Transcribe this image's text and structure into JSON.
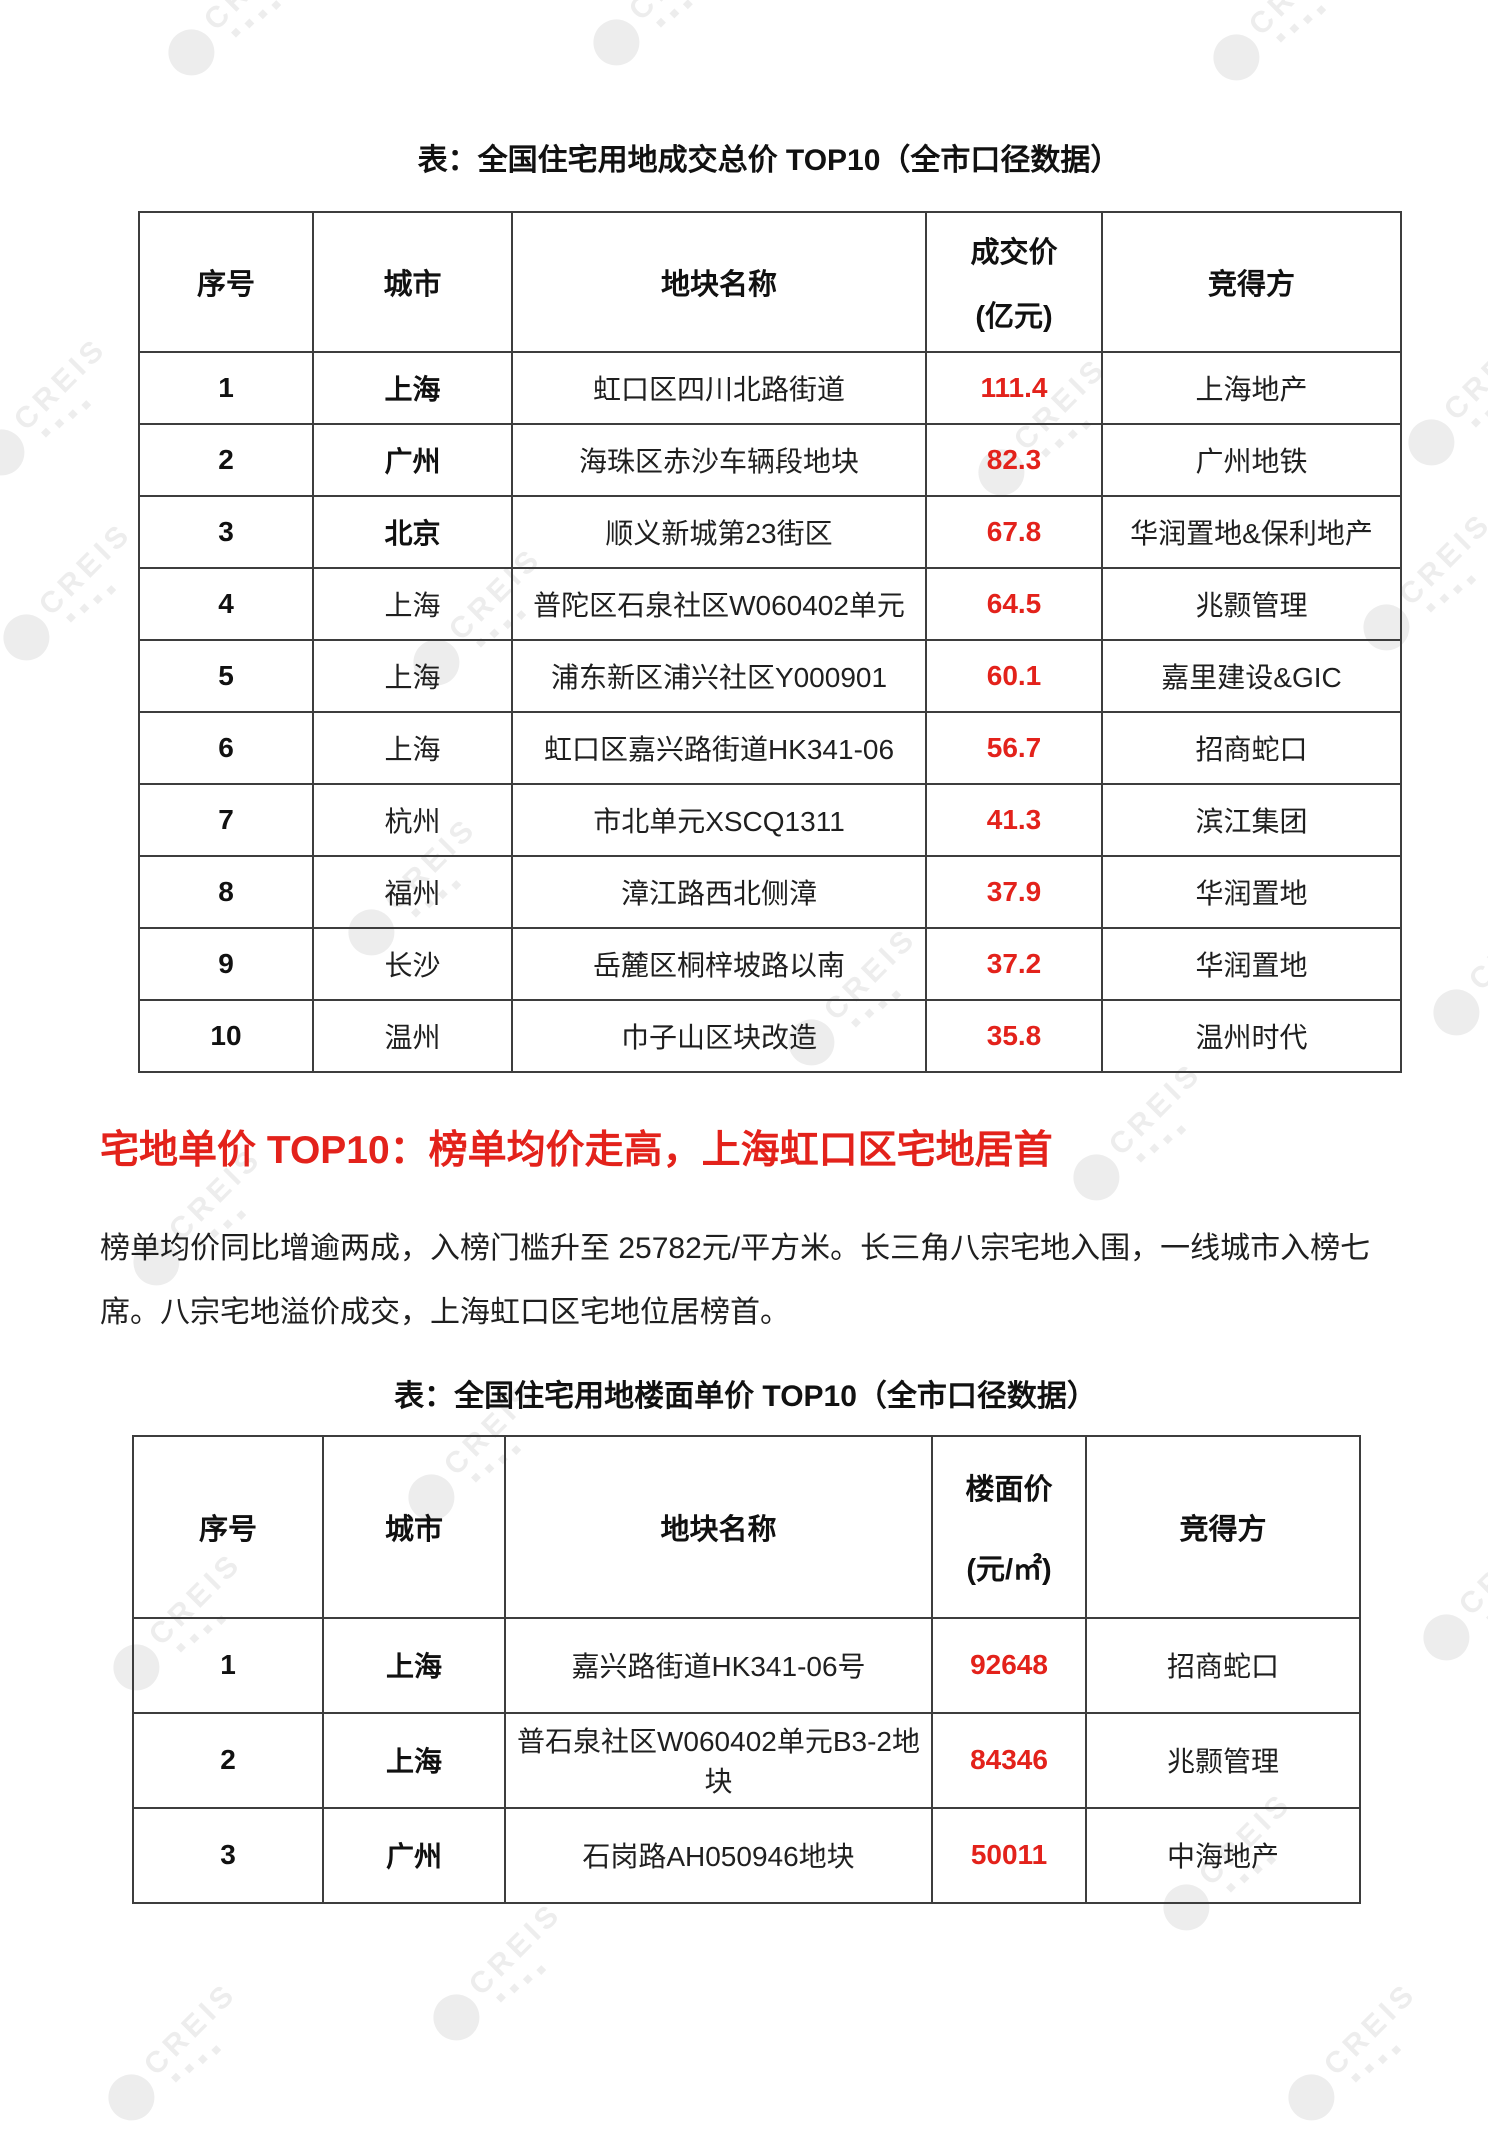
{
  "colors": {
    "accent_red": "#e3221b",
    "text": "#1f1f1f",
    "table_border": "#3d3d3d",
    "watermark_gray": "#ededed"
  },
  "watermark": {
    "text": "CREIS"
  },
  "section1": {
    "table_title": "表：全国住宅用地成交总价 TOP10（全市口径数据）",
    "table": {
      "col_rank": "序号",
      "col_city": "城市",
      "col_plot": "地块名称",
      "col_price_line1": "成交价",
      "col_price_unit": "(亿元)",
      "col_winner": "竞得方",
      "rows": [
        {
          "rank": "1",
          "city": "上海",
          "city_bold": true,
          "plot": "虹口区四川北路街道",
          "price": "111.4",
          "winner": "上海地产"
        },
        {
          "rank": "2",
          "city": "广州",
          "city_bold": true,
          "plot": "海珠区赤沙车辆段地块",
          "price": "82.3",
          "winner": "广州地铁"
        },
        {
          "rank": "3",
          "city": "北京",
          "city_bold": true,
          "plot": "顺义新城第23街区",
          "price": "67.8",
          "winner": "华润置地&保利地产"
        },
        {
          "rank": "4",
          "city": "上海",
          "city_bold": false,
          "plot": "普陀区石泉社区W060402单元",
          "price": "64.5",
          "winner": "兆颢管理"
        },
        {
          "rank": "5",
          "city": "上海",
          "city_bold": false,
          "plot": "浦东新区浦兴社区Y000901",
          "price": "60.1",
          "winner": "嘉里建设&GIC"
        },
        {
          "rank": "6",
          "city": "上海",
          "city_bold": false,
          "plot": "虹口区嘉兴路街道HK341-06",
          "price": "56.7",
          "winner": "招商蛇口"
        },
        {
          "rank": "7",
          "city": "杭州",
          "city_bold": false,
          "plot": "市北单元XSCQ1311",
          "price": "41.3",
          "winner": "滨江集团"
        },
        {
          "rank": "8",
          "city": "福州",
          "city_bold": false,
          "plot": "漳江路西北侧漳",
          "price": "37.9",
          "winner": "华润置地"
        },
        {
          "rank": "9",
          "city": "长沙",
          "city_bold": false,
          "plot": "岳麓区桐梓坡路以南",
          "price": "37.2",
          "winner": "华润置地"
        },
        {
          "rank": "10",
          "city": "温州",
          "city_bold": false,
          "plot": "巾子山区块改造",
          "price": "35.8",
          "winner": "温州时代"
        }
      ]
    }
  },
  "section2": {
    "heading": "宅地单价 TOP10：榜单均价走高，上海虹口区宅地居首",
    "paragraph": "榜单均价同比增逾两成，入榜门槛升至 25782元/平方米。长三角八宗宅地入围，一线城市入榜七席。八宗宅地溢价成交，上海虹口区宅地位居榜首。",
    "table_title": "表：全国住宅用地楼面单价 TOP10（全市口径数据）",
    "table": {
      "col_rank": "序号",
      "col_city": "城市",
      "col_plot": "地块名称",
      "col_price_line1": "楼面价",
      "col_price_unit": "(元/㎡)",
      "col_winner": "竞得方",
      "rows": [
        {
          "rank": "1",
          "city": "上海",
          "city_bold": true,
          "plot": "嘉兴路街道HK341-06号",
          "price": "92648",
          "winner": "招商蛇口"
        },
        {
          "rank": "2",
          "city": "上海",
          "city_bold": true,
          "plot": "普石泉社区W060402单元B3-2地块",
          "price": "84346",
          "winner": "兆颢管理"
        },
        {
          "rank": "3",
          "city": "广州",
          "city_bold": true,
          "plot": "石岗路AH050946地块",
          "price": "50011",
          "winner": "中海地产"
        }
      ]
    }
  }
}
